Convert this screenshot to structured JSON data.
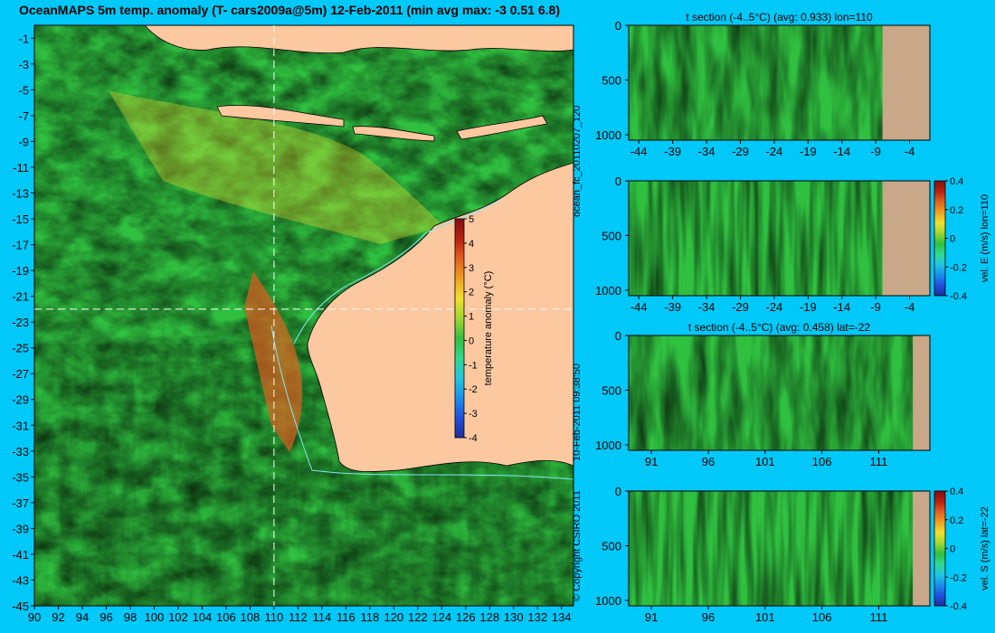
{
  "title": "OceanMAPS 5m temp. anomaly (T- cars2009a@5m) 12-Feb-2011 (min avg max: -3 0.51 6.8)",
  "side_texts": {
    "run": "ocean_fc_20110207_120",
    "created": "10-Feb-2011 09:38:50",
    "copyright": "© Copyright CSIRO 2011"
  },
  "colors": {
    "background": "#00c8f8",
    "land": "#fcc8a0",
    "section_land": "#c8a888",
    "contour": "#7fe8f0",
    "colormap": [
      "#1f2f9a",
      "#2050e0",
      "#1890f0",
      "#20c8e0",
      "#30d890",
      "#30c040",
      "#a0d830",
      "#f0e030",
      "#f0a020",
      "#e06020",
      "#b82010",
      "#801010"
    ]
  },
  "chart_data": [
    {
      "type": "heatmap",
      "name": "map",
      "title": "OceanMAPS 5m temp. anomaly (T- cars2009a@5m) 12-Feb-2011 (min avg max: -3 0.51 6.8)",
      "x_ticks": [
        90,
        92,
        94,
        96,
        98,
        100,
        102,
        104,
        106,
        108,
        110,
        112,
        114,
        116,
        118,
        120,
        122,
        124,
        126,
        128,
        130,
        132,
        134
      ],
      "y_ticks": [
        -1,
        -3,
        -5,
        -7,
        -9,
        -11,
        -13,
        -15,
        -17,
        -19,
        -21,
        -23,
        -25,
        -27,
        -29,
        -31,
        -33,
        -35,
        -37,
        -39,
        -41,
        -43,
        -45
      ],
      "xlim": [
        90,
        135
      ],
      "ylim": [
        -45,
        0
      ],
      "dashed_lines": {
        "lon": 110,
        "lat": -22
      },
      "colorbar": {
        "label": "temperature anomaly (°C)",
        "ticks": [
          5,
          4,
          3,
          2,
          1,
          0,
          -1,
          -2,
          -3,
          -4
        ],
        "range": [
          -4,
          5
        ]
      }
    },
    {
      "type": "heatmap",
      "name": "t-section-lon",
      "title": "t section (-4..5°C) (avg: 0.933) lon=110",
      "x_ticks": [
        -44,
        -39,
        -34,
        -29,
        -24,
        -19,
        -14,
        -9,
        -4
      ],
      "y_ticks": [
        0,
        500,
        1000
      ],
      "xlim": [
        -45.5,
        -1
      ],
      "ylim": [
        0,
        1050
      ]
    },
    {
      "type": "heatmap",
      "name": "velE-section-lon",
      "title": "",
      "x_ticks": [
        -44,
        -39,
        -34,
        -29,
        -24,
        -19,
        -14,
        -9,
        -4
      ],
      "y_ticks": [
        0,
        500,
        1000
      ],
      "xlim": [
        -45.5,
        -1
      ],
      "ylim": [
        0,
        1050
      ],
      "colorbar": {
        "label": "vel. E (m/s) lon=110",
        "ticks": [
          "0.4",
          "0.2",
          "0",
          "-0.2",
          "-0.4"
        ],
        "range": [
          -0.4,
          0.4
        ]
      }
    },
    {
      "type": "heatmap",
      "name": "t-section-lat",
      "title": "t section (-4..5°C) (avg: 0.458) lat=-22",
      "x_ticks": [
        91,
        96,
        101,
        106,
        111
      ],
      "y_ticks": [
        0,
        500,
        1000
      ],
      "xlim": [
        89,
        115.5
      ],
      "ylim": [
        0,
        1050
      ]
    },
    {
      "type": "heatmap",
      "name": "velS-section-lat",
      "title": "",
      "x_ticks": [
        91,
        96,
        101,
        106,
        111
      ],
      "y_ticks": [
        0,
        500,
        1000
      ],
      "xlim": [
        89,
        115.5
      ],
      "ylim": [
        0,
        1050
      ],
      "colorbar": {
        "label": "vel. S (m/s) lat=-22",
        "ticks": [
          "0.4",
          "0.2",
          "0",
          "-0.2",
          "-0.4"
        ],
        "range": [
          -0.4,
          0.4
        ]
      }
    }
  ]
}
